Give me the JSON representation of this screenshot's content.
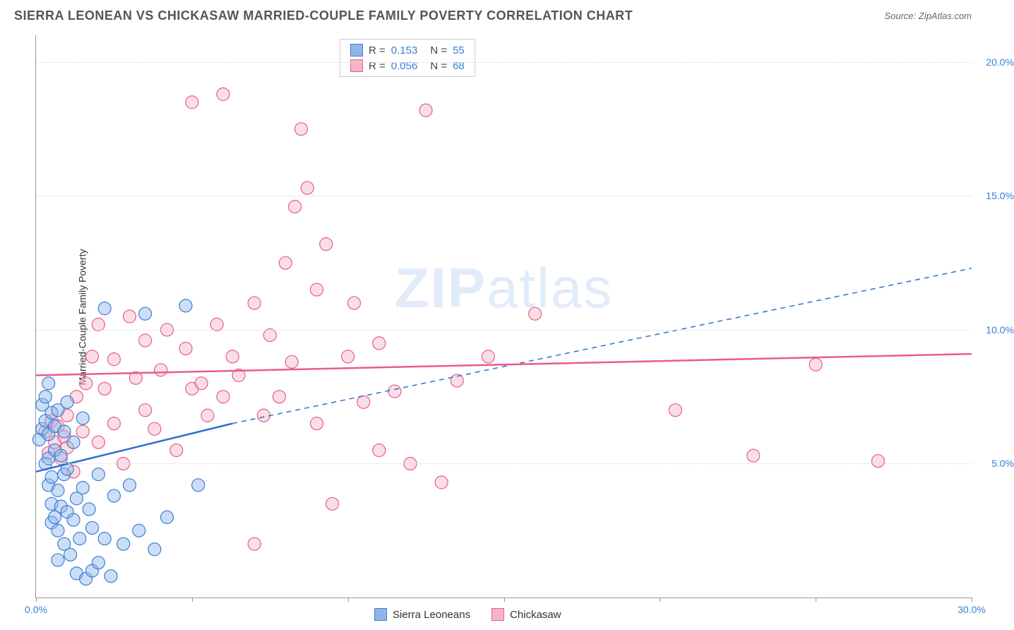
{
  "title": "SIERRA LEONEAN VS CHICKASAW MARRIED-COUPLE FAMILY POVERTY CORRELATION CHART",
  "source": "Source: ZipAtlas.com",
  "watermark": {
    "bold": "ZIP",
    "rest": "atlas"
  },
  "ylabel": "Married-Couple Family Poverty",
  "chart": {
    "type": "scatter",
    "xlim": [
      0,
      30
    ],
    "ylim": [
      0,
      21
    ],
    "x_ticks": [
      0,
      5,
      10,
      15,
      20,
      25,
      30
    ],
    "x_tick_labels": {
      "0": "0.0%",
      "30": "30.0%"
    },
    "y_ticks": [
      5,
      10,
      15,
      20
    ],
    "y_tick_labels": {
      "5": "5.0%",
      "10": "10.0%",
      "15": "15.0%",
      "20": "20.0%"
    },
    "grid_color": "#dddddd",
    "background_color": "#ffffff",
    "marker_radius": 9,
    "series": {
      "sierra": {
        "label": "Sierra Leoneans",
        "fill_color": "#8fb6e8",
        "stroke_color": "#3b7dd8",
        "r_label": "R =",
        "r_value": "0.153",
        "n_label": "N =",
        "n_value": "55",
        "trend": {
          "solid": [
            [
              0,
              4.7
            ],
            [
              6.3,
              6.5
            ]
          ],
          "dashed": [
            [
              6.3,
              6.5
            ],
            [
              30,
              12.3
            ]
          ],
          "color": "#2f6fd0",
          "width": 2.5
        },
        "points": [
          [
            0.1,
            5.9
          ],
          [
            0.2,
            6.3
          ],
          [
            0.2,
            7.2
          ],
          [
            0.3,
            5.0
          ],
          [
            0.3,
            6.6
          ],
          [
            0.3,
            7.5
          ],
          [
            0.4,
            4.2
          ],
          [
            0.4,
            5.2
          ],
          [
            0.4,
            6.1
          ],
          [
            0.4,
            8.0
          ],
          [
            0.5,
            2.8
          ],
          [
            0.5,
            3.5
          ],
          [
            0.5,
            4.5
          ],
          [
            0.5,
            6.9
          ],
          [
            0.6,
            3.0
          ],
          [
            0.6,
            5.5
          ],
          [
            0.6,
            6.4
          ],
          [
            0.7,
            1.4
          ],
          [
            0.7,
            2.5
          ],
          [
            0.7,
            4.0
          ],
          [
            0.7,
            7.0
          ],
          [
            0.8,
            3.4
          ],
          [
            0.8,
            5.3
          ],
          [
            0.9,
            2.0
          ],
          [
            0.9,
            4.6
          ],
          [
            0.9,
            6.2
          ],
          [
            1.0,
            3.2
          ],
          [
            1.0,
            4.8
          ],
          [
            1.0,
            7.3
          ],
          [
            1.1,
            1.6
          ],
          [
            1.2,
            2.9
          ],
          [
            1.2,
            5.8
          ],
          [
            1.3,
            0.9
          ],
          [
            1.3,
            3.7
          ],
          [
            1.4,
            2.2
          ],
          [
            1.5,
            4.1
          ],
          [
            1.5,
            6.7
          ],
          [
            1.6,
            0.7
          ],
          [
            1.7,
            3.3
          ],
          [
            1.8,
            1.0
          ],
          [
            1.8,
            2.6
          ],
          [
            2.0,
            1.3
          ],
          [
            2.0,
            4.6
          ],
          [
            2.2,
            2.2
          ],
          [
            2.2,
            10.8
          ],
          [
            2.4,
            0.8
          ],
          [
            2.5,
            3.8
          ],
          [
            2.8,
            2.0
          ],
          [
            3.0,
            4.2
          ],
          [
            3.3,
            2.5
          ],
          [
            3.5,
            10.6
          ],
          [
            3.8,
            1.8
          ],
          [
            4.2,
            3.0
          ],
          [
            4.8,
            10.9
          ],
          [
            5.2,
            4.2
          ]
        ]
      },
      "chickasaw": {
        "label": "Chickasaw",
        "fill_color": "#f5b5c5",
        "stroke_color": "#e85d87",
        "r_label": "R =",
        "r_value": "0.056",
        "n_label": "N =",
        "n_value": "68",
        "trend": {
          "solid": [
            [
              0,
              8.3
            ],
            [
              30,
              9.1
            ]
          ],
          "color": "#e85d87",
          "width": 2.5
        },
        "points": [
          [
            0.3,
            6.2
          ],
          [
            0.4,
            5.4
          ],
          [
            0.5,
            6.6
          ],
          [
            0.6,
            5.8
          ],
          [
            0.7,
            6.4
          ],
          [
            0.8,
            5.2
          ],
          [
            0.9,
            6.0
          ],
          [
            1.0,
            5.6
          ],
          [
            1.0,
            6.8
          ],
          [
            1.2,
            4.7
          ],
          [
            1.3,
            7.5
          ],
          [
            1.5,
            6.2
          ],
          [
            1.6,
            8.0
          ],
          [
            1.8,
            9.0
          ],
          [
            2.0,
            5.8
          ],
          [
            2.0,
            10.2
          ],
          [
            2.2,
            7.8
          ],
          [
            2.5,
            6.5
          ],
          [
            2.5,
            8.9
          ],
          [
            2.8,
            5.0
          ],
          [
            3.0,
            10.5
          ],
          [
            3.2,
            8.2
          ],
          [
            3.5,
            7.0
          ],
          [
            3.5,
            9.6
          ],
          [
            3.8,
            6.3
          ],
          [
            4.0,
            8.5
          ],
          [
            4.2,
            10.0
          ],
          [
            4.5,
            5.5
          ],
          [
            4.8,
            9.3
          ],
          [
            5.0,
            7.8
          ],
          [
            5.0,
            18.5
          ],
          [
            5.3,
            8.0
          ],
          [
            5.5,
            6.8
          ],
          [
            5.8,
            10.2
          ],
          [
            6.0,
            7.5
          ],
          [
            6.0,
            18.8
          ],
          [
            6.3,
            9.0
          ],
          [
            6.5,
            8.3
          ],
          [
            7.0,
            2.0
          ],
          [
            7.0,
            11.0
          ],
          [
            7.3,
            6.8
          ],
          [
            7.5,
            9.8
          ],
          [
            7.8,
            7.5
          ],
          [
            8.0,
            12.5
          ],
          [
            8.2,
            8.8
          ],
          [
            8.3,
            14.6
          ],
          [
            8.5,
            17.5
          ],
          [
            8.7,
            15.3
          ],
          [
            9.0,
            6.5
          ],
          [
            9.0,
            11.5
          ],
          [
            9.3,
            13.2
          ],
          [
            9.5,
            3.5
          ],
          [
            10.0,
            9.0
          ],
          [
            10.2,
            11.0
          ],
          [
            10.5,
            7.3
          ],
          [
            11.0,
            5.5
          ],
          [
            11.0,
            9.5
          ],
          [
            11.5,
            7.7
          ],
          [
            12.0,
            5.0
          ],
          [
            12.5,
            18.2
          ],
          [
            13.0,
            4.3
          ],
          [
            13.5,
            8.1
          ],
          [
            14.5,
            9.0
          ],
          [
            16.0,
            10.6
          ],
          [
            20.5,
            7.0
          ],
          [
            23.0,
            5.3
          ],
          [
            25.0,
            8.7
          ],
          [
            27.0,
            5.1
          ]
        ]
      }
    }
  }
}
